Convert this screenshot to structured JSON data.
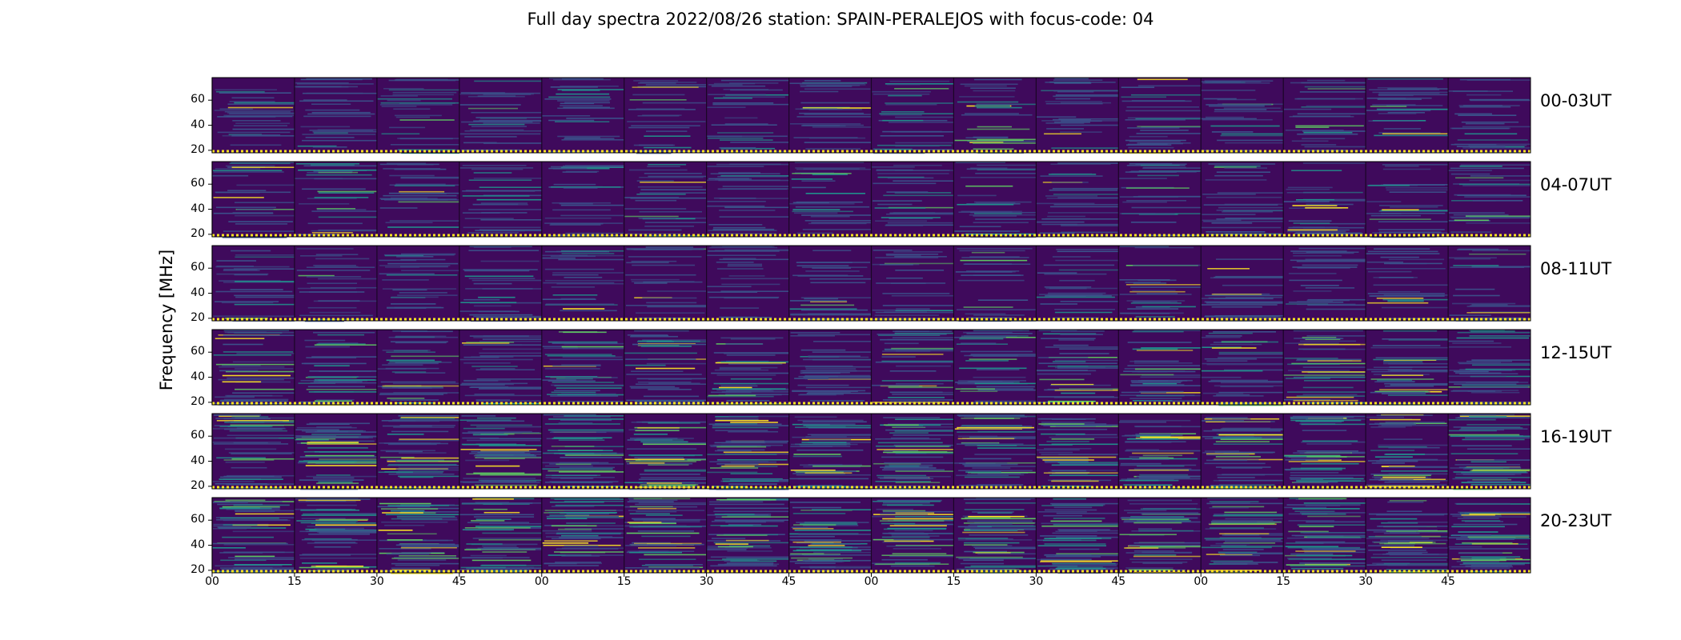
{
  "chart_data": {
    "type": "heatmap",
    "title": "Full day spectra 2022/08/26 station: SPAIN-PERALEJOS with focus-code: 04",
    "ylabel": "Frequency [MHz]",
    "xlabel": "",
    "ylim": [
      18,
      78
    ],
    "y_ticks": [
      "20",
      "40",
      "60"
    ],
    "x_ticks": [
      "00",
      "15",
      "30",
      "45",
      "00",
      "15",
      "30",
      "45",
      "00",
      "15",
      "30",
      "45",
      "00",
      "15",
      "30",
      "45"
    ],
    "segments_per_row": 16,
    "segment_minutes": 15,
    "rows": [
      {
        "label": "00-03UT"
      },
      {
        "label": "04-07UT"
      },
      {
        "label": "08-11UT"
      },
      {
        "label": "12-15UT"
      },
      {
        "label": "16-19UT"
      },
      {
        "label": "20-23UT"
      }
    ],
    "colormap": [
      "#440154",
      "#3b528b",
      "#21918c",
      "#5ec962",
      "#fde725"
    ],
    "background_color": "#3f0a5c"
  }
}
